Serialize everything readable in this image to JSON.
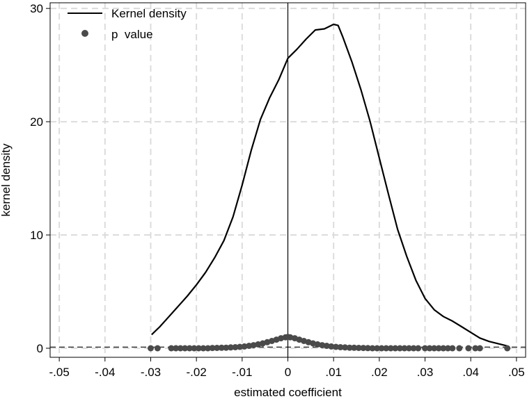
{
  "chart_data": {
    "type": "line",
    "xlabel": "estimated coefficient",
    "ylabel": "kernel density",
    "xlim": [
      -0.052,
      0.052
    ],
    "ylim": [
      -0.8,
      30.5
    ],
    "x_ticks": [
      {
        "value": -0.05,
        "label": "-.05"
      },
      {
        "value": -0.04,
        "label": "-.04"
      },
      {
        "value": -0.03,
        "label": "-.03"
      },
      {
        "value": -0.02,
        "label": "-.02"
      },
      {
        "value": -0.01,
        "label": "-.01"
      },
      {
        "value": 0,
        "label": "0"
      },
      {
        "value": 0.01,
        "label": ".01"
      },
      {
        "value": 0.02,
        "label": ".02"
      },
      {
        "value": 0.03,
        "label": ".03"
      },
      {
        "value": 0.04,
        "label": ".04"
      },
      {
        "value": 0.05,
        "label": ".05"
      }
    ],
    "y_ticks": [
      {
        "value": 0,
        "label": "0"
      },
      {
        "value": 10,
        "label": "10"
      },
      {
        "value": 20,
        "label": "20"
      },
      {
        "value": 30,
        "label": "30"
      }
    ],
    "grid": true,
    "reference_lines": {
      "vertical_x": 0,
      "horizontal_dashed_y": 0.1
    },
    "legend": {
      "placement": "top-left",
      "entries": [
        {
          "label": "Kernel density",
          "marker": "line"
        },
        {
          "label": "p  value",
          "marker": "dot"
        }
      ]
    },
    "series": [
      {
        "name": "Kernel density",
        "kind": "line",
        "color": "#000000",
        "points": [
          [
            -0.0298,
            1.2
          ],
          [
            -0.028,
            1.9
          ],
          [
            -0.026,
            2.8
          ],
          [
            -0.024,
            3.7
          ],
          [
            -0.022,
            4.6
          ],
          [
            -0.02,
            5.6
          ],
          [
            -0.018,
            6.7
          ],
          [
            -0.016,
            8.0
          ],
          [
            -0.014,
            9.5
          ],
          [
            -0.012,
            11.6
          ],
          [
            -0.01,
            14.4
          ],
          [
            -0.008,
            17.5
          ],
          [
            -0.006,
            20.2
          ],
          [
            -0.004,
            22.1
          ],
          [
            -0.002,
            23.7
          ],
          [
            0.0,
            25.6
          ],
          [
            0.002,
            26.4
          ],
          [
            0.004,
            27.3
          ],
          [
            0.006,
            28.1
          ],
          [
            0.008,
            28.2
          ],
          [
            0.01,
            28.6
          ],
          [
            0.011,
            28.5
          ],
          [
            0.012,
            27.5
          ],
          [
            0.014,
            25.3
          ],
          [
            0.016,
            22.8
          ],
          [
            0.018,
            20.0
          ],
          [
            0.02,
            16.8
          ],
          [
            0.022,
            13.6
          ],
          [
            0.024,
            10.5
          ],
          [
            0.026,
            8.1
          ],
          [
            0.028,
            6.0
          ],
          [
            0.03,
            4.4
          ],
          [
            0.032,
            3.4
          ],
          [
            0.034,
            2.8
          ],
          [
            0.036,
            2.4
          ],
          [
            0.038,
            1.9
          ],
          [
            0.04,
            1.4
          ],
          [
            0.042,
            0.9
          ],
          [
            0.044,
            0.6
          ],
          [
            0.046,
            0.4
          ],
          [
            0.048,
            0.2
          ]
        ]
      },
      {
        "name": "p  value",
        "kind": "scatter",
        "color": "#4a4a4a",
        "points": [
          [
            -0.03,
            0.0
          ],
          [
            -0.0285,
            0.0
          ],
          [
            -0.0255,
            0.0
          ],
          [
            -0.0245,
            0.0
          ],
          [
            -0.0235,
            0.0
          ],
          [
            -0.0225,
            0.0
          ],
          [
            -0.0215,
            0.0
          ],
          [
            -0.0205,
            0.0
          ],
          [
            -0.0195,
            0.0
          ],
          [
            -0.0185,
            0.0
          ],
          [
            -0.0175,
            0.0
          ],
          [
            -0.0165,
            0.02
          ],
          [
            -0.0155,
            0.03
          ],
          [
            -0.0145,
            0.04
          ],
          [
            -0.0135,
            0.05
          ],
          [
            -0.0125,
            0.07
          ],
          [
            -0.0115,
            0.09
          ],
          [
            -0.0105,
            0.12
          ],
          [
            -0.0095,
            0.16
          ],
          [
            -0.0085,
            0.21
          ],
          [
            -0.0075,
            0.27
          ],
          [
            -0.0065,
            0.34
          ],
          [
            -0.0055,
            0.43
          ],
          [
            -0.0045,
            0.53
          ],
          [
            -0.0035,
            0.64
          ],
          [
            -0.0025,
            0.76
          ],
          [
            -0.0015,
            0.88
          ],
          [
            -0.0005,
            0.97
          ],
          [
            0.0,
            1.0
          ],
          [
            0.0005,
            0.97
          ],
          [
            0.0015,
            0.88
          ],
          [
            0.0025,
            0.76
          ],
          [
            0.0035,
            0.64
          ],
          [
            0.0045,
            0.53
          ],
          [
            0.0055,
            0.43
          ],
          [
            0.0065,
            0.34
          ],
          [
            0.0075,
            0.27
          ],
          [
            0.0085,
            0.21
          ],
          [
            0.0095,
            0.16
          ],
          [
            0.0105,
            0.12
          ],
          [
            0.0115,
            0.09
          ],
          [
            0.0125,
            0.07
          ],
          [
            0.0135,
            0.05
          ],
          [
            0.0145,
            0.04
          ],
          [
            0.0155,
            0.03
          ],
          [
            0.0165,
            0.02
          ],
          [
            0.0175,
            0.01
          ],
          [
            0.0185,
            0.0
          ],
          [
            0.0195,
            0.0
          ],
          [
            0.0205,
            0.0
          ],
          [
            0.0215,
            0.0
          ],
          [
            0.0225,
            0.0
          ],
          [
            0.0235,
            0.0
          ],
          [
            0.0245,
            0.0
          ],
          [
            0.0255,
            0.0
          ],
          [
            0.0265,
            0.0
          ],
          [
            0.0275,
            0.0
          ],
          [
            0.0285,
            0.0
          ],
          [
            0.03,
            0.0
          ],
          [
            0.031,
            0.0
          ],
          [
            0.032,
            0.0
          ],
          [
            0.033,
            0.0
          ],
          [
            0.034,
            0.0
          ],
          [
            0.035,
            0.0
          ],
          [
            0.036,
            0.0
          ],
          [
            0.0375,
            0.0
          ],
          [
            0.0395,
            0.0
          ],
          [
            0.041,
            0.0
          ],
          [
            0.042,
            0.0
          ],
          [
            0.048,
            0.0
          ]
        ]
      }
    ]
  }
}
